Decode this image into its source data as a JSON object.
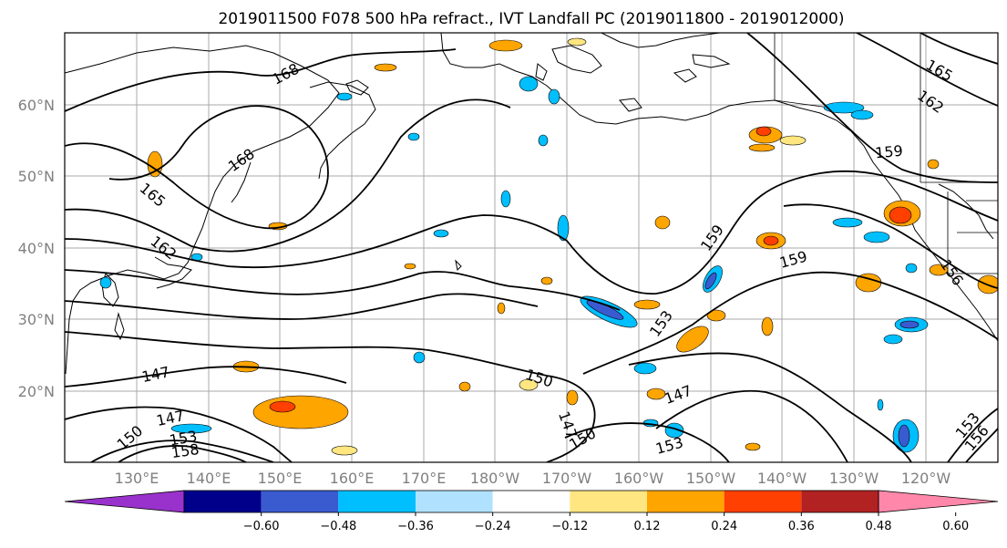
{
  "title": "2019011500 F078 500 hPa refract., IVT Landfall PC (2019011800 - 2019012000)",
  "lat_labels": [
    "60°N",
    "50°N",
    "40°N",
    "30°N",
    "20°N"
  ],
  "lon_labels": [
    "130°E",
    "140°E",
    "150°E",
    "160°E",
    "170°E",
    "180°W",
    "170°W",
    "160°W",
    "150°W",
    "140°W",
    "130°W",
    "120°W"
  ],
  "colorbar": {
    "colors": [
      "#9932CC",
      "#00008B",
      "#3A5BD0",
      "#00BFFF",
      "#B0E2FF",
      "#FFFFFF",
      "#FFE680",
      "#FFA500",
      "#FF4000",
      "#B22222",
      "#FF88AA"
    ],
    "tick_labels": [
      "−0.60",
      "−0.48",
      "−0.36",
      "−0.24",
      "−0.12",
      "0.12",
      "0.24",
      "0.36",
      "0.48",
      "0.60"
    ]
  },
  "contour_labels": [
    "168",
    "168",
    "165",
    "162",
    "147",
    "147",
    "150",
    "153",
    "158",
    "150",
    "147",
    "150",
    "153",
    "153",
    "147",
    "159",
    "159",
    "159",
    "156",
    "162",
    "165",
    "153",
    "156"
  ]
}
